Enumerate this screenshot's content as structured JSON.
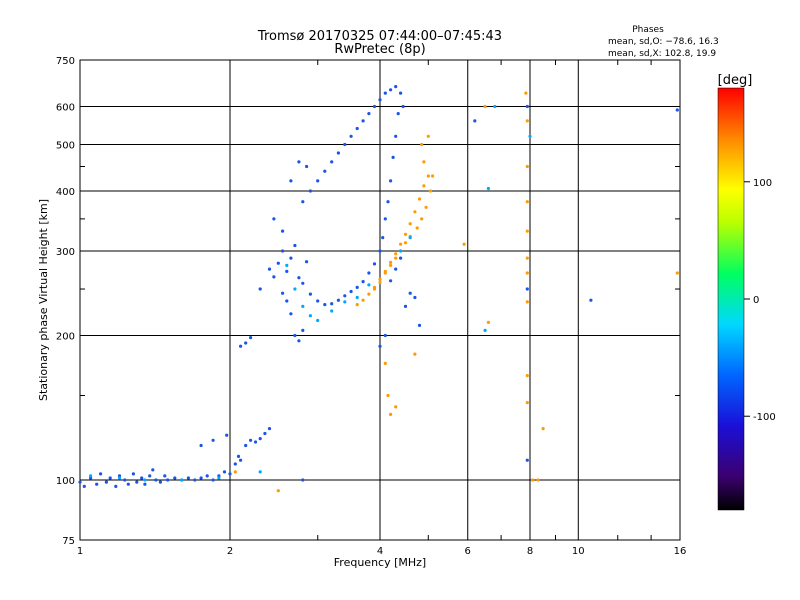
{
  "chart_data": {
    "type": "scatter",
    "title": "Tromsø 20170325 07:44:00–07:45:43",
    "subtitle": "RwPretec (8p)",
    "xlabel": "Frequency [MHz]",
    "ylabel": "Stationary phase Virtual Height [km]",
    "x_scale": "log",
    "y_scale": "log",
    "xlim": [
      1,
      16
    ],
    "ylim": [
      75,
      750
    ],
    "x_ticks": [
      1,
      2,
      4,
      6,
      8,
      10,
      16
    ],
    "y_ticks": [
      75,
      100,
      200,
      300,
      400,
      500,
      600,
      750
    ],
    "grid": true,
    "phase_box": {
      "title": "Phases",
      "line_o": "mean, sd,O: −78.6, 16.3",
      "line_x": "mean, sd,X: 102.8, 19.9"
    },
    "colorbar": {
      "label": "[deg]",
      "min": -180,
      "max": 180,
      "ticks": [
        100,
        0,
        -100
      ]
    },
    "series": [
      {
        "values": [
          [
            1.0,
            99
          ],
          [
            1.02,
            97
          ],
          [
            1.05,
            101
          ],
          [
            1.08,
            98
          ],
          [
            1.1,
            103
          ],
          [
            1.13,
            99
          ],
          [
            1.15,
            101
          ],
          [
            1.18,
            97
          ],
          [
            1.2,
            102
          ],
          [
            1.23,
            100
          ],
          [
            1.25,
            98
          ],
          [
            1.28,
            103
          ],
          [
            1.3,
            99
          ],
          [
            1.33,
            101
          ],
          [
            1.35,
            98
          ],
          [
            1.38,
            102
          ],
          [
            1.4,
            105
          ],
          [
            1.42,
            100
          ],
          [
            1.45,
            99
          ],
          [
            1.48,
            102
          ],
          [
            1.5,
            100
          ],
          [
            1.55,
            101
          ],
          [
            1.6,
            100
          ],
          [
            1.65,
            101
          ],
          [
            1.7,
            100
          ],
          [
            1.75,
            101
          ],
          [
            1.8,
            102
          ],
          [
            1.85,
            100
          ],
          [
            1.9,
            102
          ],
          [
            1.95,
            104
          ],
          [
            2.0,
            103
          ],
          [
            2.05,
            108
          ],
          [
            2.08,
            112
          ],
          [
            2.1,
            110
          ],
          [
            2.15,
            118
          ],
          [
            2.2,
            121
          ],
          [
            2.25,
            120
          ],
          [
            2.3,
            122
          ],
          [
            2.35,
            125
          ],
          [
            2.4,
            128
          ],
          [
            1.75,
            118
          ],
          [
            1.85,
            121
          ],
          [
            1.97,
            124
          ],
          [
            2.1,
            190
          ],
          [
            2.15,
            193
          ],
          [
            2.2,
            198
          ],
          [
            2.3,
            250
          ],
          [
            2.4,
            275
          ],
          [
            2.45,
            265
          ],
          [
            2.5,
            283
          ],
          [
            2.55,
            300
          ],
          [
            2.6,
            272
          ],
          [
            2.65,
            290
          ],
          [
            2.7,
            308
          ],
          [
            2.75,
            264
          ],
          [
            2.8,
            257
          ],
          [
            2.85,
            285
          ],
          [
            2.9,
            244
          ],
          [
            3.0,
            236
          ],
          [
            3.1,
            232
          ],
          [
            3.2,
            233
          ],
          [
            3.3,
            237
          ],
          [
            3.4,
            242
          ],
          [
            3.5,
            247
          ],
          [
            3.6,
            252
          ],
          [
            3.7,
            259
          ],
          [
            3.8,
            270
          ],
          [
            3.9,
            282
          ],
          [
            4.0,
            300
          ],
          [
            4.05,
            320
          ],
          [
            4.1,
            350
          ],
          [
            4.15,
            380
          ],
          [
            4.2,
            420
          ],
          [
            4.25,
            470
          ],
          [
            4.3,
            520
          ],
          [
            4.35,
            580
          ],
          [
            4.4,
            640
          ],
          [
            4.45,
            600
          ],
          [
            4.3,
            660
          ],
          [
            4.2,
            650
          ],
          [
            4.1,
            640
          ],
          [
            4.0,
            620
          ],
          [
            3.9,
            600
          ],
          [
            3.8,
            580
          ],
          [
            3.7,
            560
          ],
          [
            3.6,
            540
          ],
          [
            3.5,
            520
          ],
          [
            3.4,
            500
          ],
          [
            3.3,
            480
          ],
          [
            3.2,
            460
          ],
          [
            3.1,
            440
          ],
          [
            3.0,
            420
          ],
          [
            2.9,
            400
          ],
          [
            2.8,
            380
          ],
          [
            2.75,
            460
          ],
          [
            2.85,
            450
          ],
          [
            2.65,
            420
          ],
          [
            2.45,
            350
          ],
          [
            2.55,
            330
          ],
          [
            2.7,
            200
          ],
          [
            2.75,
            195
          ],
          [
            2.8,
            205
          ],
          [
            2.65,
            222
          ],
          [
            2.6,
            236
          ],
          [
            2.55,
            245
          ],
          [
            4.2,
            260
          ],
          [
            4.3,
            275
          ],
          [
            4.4,
            290
          ],
          [
            4.5,
            230
          ],
          [
            4.6,
            245
          ],
          [
            4.7,
            240
          ],
          [
            4.8,
            210
          ],
          [
            4.0,
            190
          ],
          [
            4.1,
            200
          ],
          [
            6.2,
            560
          ],
          [
            7.9,
            600
          ],
          [
            7.9,
            250
          ],
          [
            7.9,
            110
          ],
          [
            10.6,
            237
          ],
          [
            15.8,
            590
          ],
          [
            2.8,
            100
          ]
        ]
      },
      {
        "values": [
          [
            3.6,
            232
          ],
          [
            3.7,
            237
          ],
          [
            3.8,
            244
          ],
          [
            3.9,
            252
          ],
          [
            4.0,
            262
          ],
          [
            4.1,
            272
          ],
          [
            4.2,
            284
          ],
          [
            4.3,
            296
          ],
          [
            4.4,
            310
          ],
          [
            4.5,
            325
          ],
          [
            4.6,
            342
          ],
          [
            4.7,
            362
          ],
          [
            4.8,
            385
          ],
          [
            4.9,
            410
          ],
          [
            5.0,
            430
          ],
          [
            5.05,
            400
          ],
          [
            4.95,
            370
          ],
          [
            4.85,
            350
          ],
          [
            4.75,
            335
          ],
          [
            4.6,
            322
          ],
          [
            4.5,
            312
          ],
          [
            4.4,
            300
          ],
          [
            4.3,
            290
          ],
          [
            4.2,
            280
          ],
          [
            4.1,
            270
          ],
          [
            4.0,
            258
          ],
          [
            3.9,
            250
          ],
          [
            5.0,
            520
          ],
          [
            4.85,
            500
          ],
          [
            4.9,
            460
          ],
          [
            5.1,
            430
          ],
          [
            4.15,
            150
          ],
          [
            4.2,
            137
          ],
          [
            4.3,
            142
          ],
          [
            4.1,
            175
          ],
          [
            4.7,
            183
          ],
          [
            6.5,
            600
          ],
          [
            6.6,
            213
          ],
          [
            7.85,
            640
          ],
          [
            7.9,
            560
          ],
          [
            7.9,
            450
          ],
          [
            7.9,
            380
          ],
          [
            7.9,
            330
          ],
          [
            7.9,
            290
          ],
          [
            7.9,
            270
          ],
          [
            7.9,
            235
          ],
          [
            7.9,
            165
          ],
          [
            7.9,
            145
          ],
          [
            8.1,
            100
          ],
          [
            8.3,
            100
          ],
          [
            8.5,
            128
          ],
          [
            2.05,
            104
          ],
          [
            2.5,
            95
          ],
          [
            15.8,
            270
          ],
          [
            5.9,
            310
          ]
        ]
      },
      {
        "values": [
          [
            1.05,
            102
          ],
          [
            1.2,
            101
          ],
          [
            1.35,
            100
          ],
          [
            1.6,
            100
          ],
          [
            1.9,
            101
          ],
          [
            2.3,
            104
          ],
          [
            2.6,
            280
          ],
          [
            2.7,
            250
          ],
          [
            2.8,
            230
          ],
          [
            2.9,
            220
          ],
          [
            3.0,
            215
          ],
          [
            3.2,
            225
          ],
          [
            3.4,
            235
          ],
          [
            3.6,
            240
          ],
          [
            3.8,
            255
          ],
          [
            4.4,
            300
          ],
          [
            4.6,
            320
          ],
          [
            6.6,
            405
          ],
          [
            6.5,
            205
          ],
          [
            6.8,
            600
          ],
          [
            8.0,
            520
          ]
        ]
      }
    ]
  }
}
